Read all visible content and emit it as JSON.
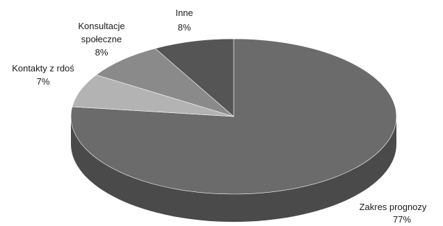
{
  "chart_data": {
    "type": "pie",
    "style": "3d",
    "title": "",
    "slices": [
      {
        "label": "Zakres prognozy",
        "value": 77,
        "value_label": "77%",
        "color": "#6b6b6b",
        "side_color": "#4a4a4a"
      },
      {
        "label": "Kontakty z rdoś",
        "value": 7,
        "value_label": "7%",
        "color": "#b3b3b3",
        "side_color": "#8c8c8c"
      },
      {
        "label": "Konsultacje społeczne",
        "value": 8,
        "value_label": "8%",
        "color": "#8a8a8a",
        "side_color": "#676767"
      },
      {
        "label": "Inne",
        "value": 8,
        "value_label": "8%",
        "color": "#555555",
        "side_color": "#3c3c3c"
      }
    ],
    "legend": "none"
  }
}
